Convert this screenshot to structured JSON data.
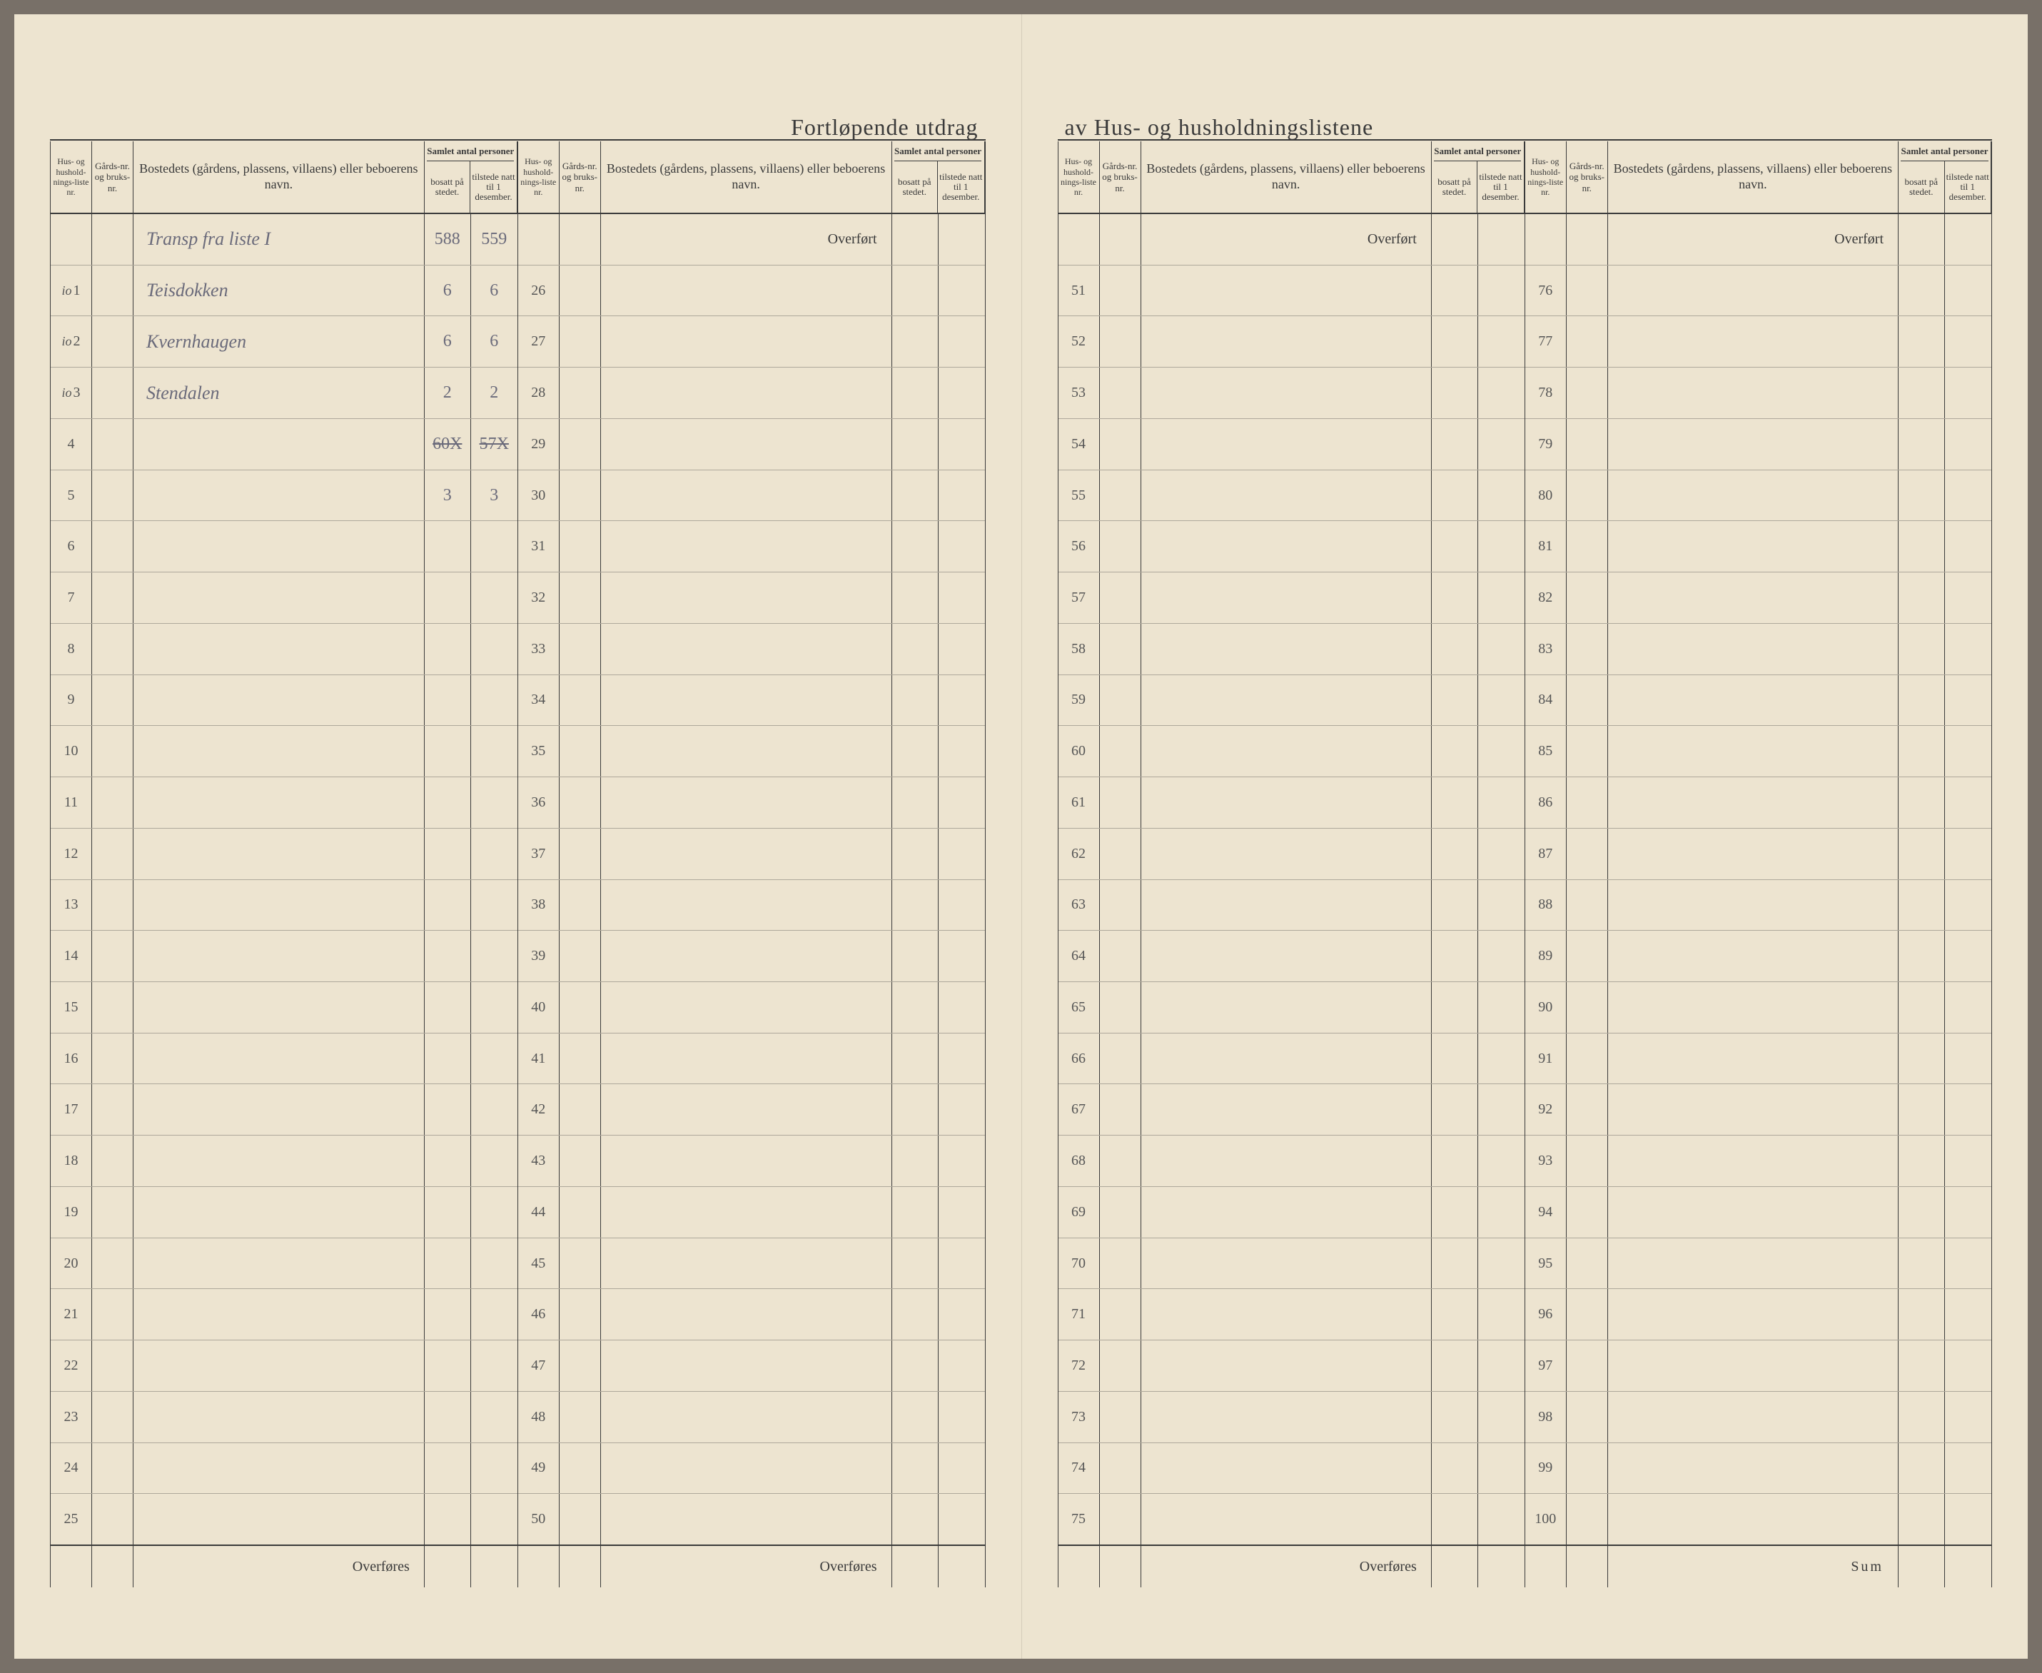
{
  "title_left": "Fortløpende utdrag",
  "title_right": "av Hus- og husholdningslistene",
  "header": {
    "liste": "Hus- og hushold-nings-liste nr.",
    "gard": "Gårds-nr. og bruks-nr.",
    "bostedet": "Bostedets (gårdens, plassens, villaens) eller beboerens navn.",
    "samlet": "Samlet antal personer",
    "bosatt": "bosatt på stedet.",
    "tilstede": "tilstede natt til 1 desember."
  },
  "overfort": "Overført",
  "overfores": "Overføres",
  "sum": "Sum",
  "transp": "Transp fra liste I",
  "transp_bosatt": "588",
  "transp_tilstede": "559",
  "entries": [
    {
      "prefix": "io",
      "num": "1",
      "name": "Teisdokken",
      "bosatt": "6",
      "tilstede": "6"
    },
    {
      "prefix": "io",
      "num": "2",
      "name": "Kvernhaugen",
      "bosatt": "6",
      "tilstede": "6"
    },
    {
      "prefix": "io",
      "num": "3",
      "name": "Stendalen",
      "bosatt": "2",
      "tilstede": "2"
    }
  ],
  "subtotal": {
    "bosatt": "60X",
    "tilstede": "57X"
  },
  "subtotal2": {
    "bosatt": "3",
    "tilstede": "3"
  },
  "colors": {
    "paper": "#ede4d0",
    "ink": "#3a3a3a",
    "hand": "#6a6a7a"
  }
}
